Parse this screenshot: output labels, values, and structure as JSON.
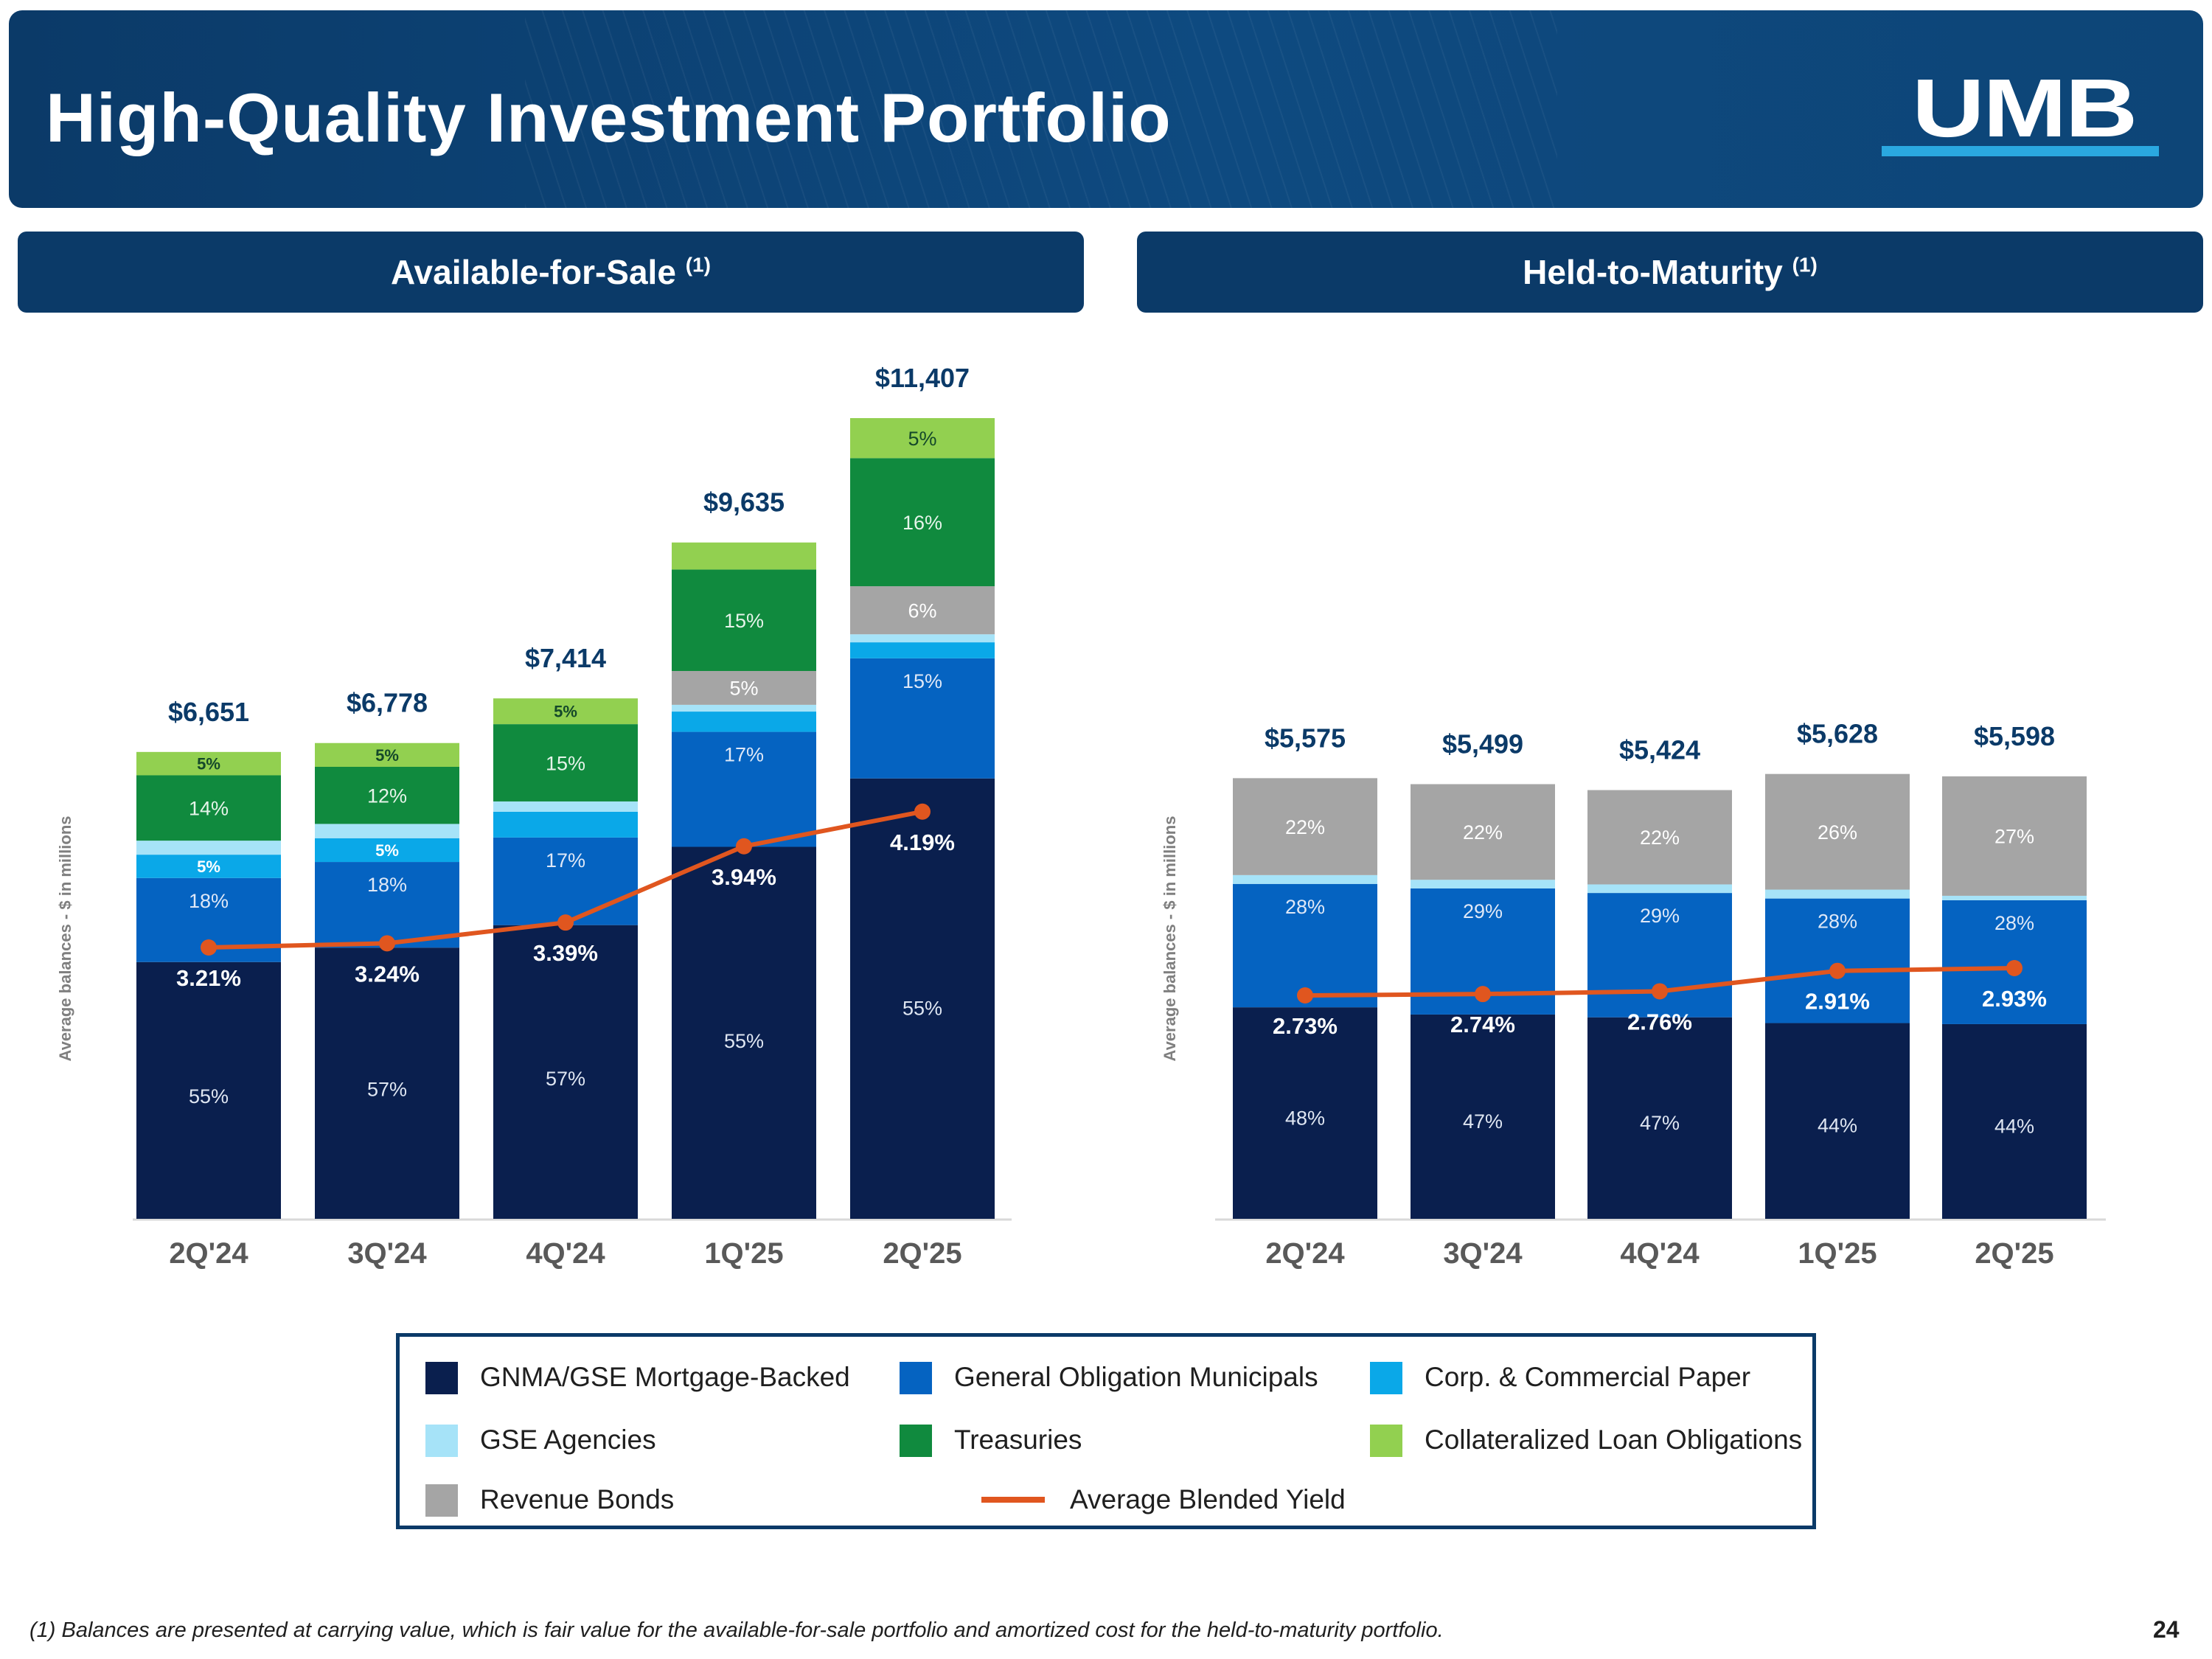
{
  "title": "High-Quality Investment Portfolio",
  "logo": "UMB",
  "colors": {
    "GNMA/GSE Mortgage-Backed": "#0a1f4e",
    "General Obligation Municipals": "#0563c1",
    "Corp. & Commercial Paper": "#0aa8e8",
    "GSE Agencies": "#a6e3f8",
    "Treasuries": "#108a3e",
    "Collateralized Loan Obligations": "#92d050",
    "Revenue Bonds": "#a5a5a5",
    "Average Blended Yield": "#e0561f"
  },
  "legend": {
    "items": [
      {
        "label": "GNMA/GSE Mortgage-Backed",
        "color": "#0a1f4e"
      },
      {
        "label": "General Obligation Municipals",
        "color": "#0563c1"
      },
      {
        "label": "Corp. & Commercial Paper",
        "color": "#0aa8e8"
      },
      {
        "label": "GSE Agencies",
        "color": "#a6e3f8"
      },
      {
        "label": "Treasuries",
        "color": "#108a3e"
      },
      {
        "label": "Collateralized Loan Obligations",
        "color": "#92d050"
      },
      {
        "label": "Revenue Bonds",
        "color": "#a5a5a5"
      },
      {
        "label": "Average Blended Yield",
        "color": "#e0561f"
      }
    ]
  },
  "chart_data": [
    {
      "type": "bar",
      "title": "Available-for-Sale",
      "title_note": "(1)",
      "ylabel": "Average balances  - $ in millions",
      "categories": [
        "2Q'24",
        "3Q'24",
        "4Q'24",
        "1Q'25",
        "2Q'25"
      ],
      "totals": [
        6651,
        6778,
        7414,
        9635,
        11407
      ],
      "total_labels": [
        "$6,651",
        "$6,778",
        "$7,414",
        "$9,635",
        "$11,407"
      ],
      "series": [
        {
          "name": "GNMA/GSE Mortgage-Backed",
          "values": [
            55,
            57,
            57,
            55,
            55
          ],
          "labels": [
            "55%",
            "57%",
            "57%",
            "55%",
            "55%"
          ]
        },
        {
          "name": "General Obligation Municipals",
          "values": [
            18,
            18,
            17,
            17,
            15
          ],
          "labels": [
            "18%",
            "18%",
            "17%",
            "17%",
            "15%"
          ]
        },
        {
          "name": "Corp. & Commercial Paper",
          "values": [
            5,
            5,
            5,
            3,
            2
          ],
          "labels": [
            "5%",
            "5%",
            "",
            "",
            ""
          ]
        },
        {
          "name": "GSE Agencies",
          "values": [
            3,
            3,
            2,
            1,
            1
          ],
          "labels": [
            "",
            "",
            "",
            "",
            ""
          ]
        },
        {
          "name": "Revenue Bonds",
          "values": [
            0,
            0,
            0,
            5,
            6
          ],
          "labels": [
            "",
            "",
            "",
            "5%",
            "6%"
          ]
        },
        {
          "name": "Treasuries",
          "values": [
            14,
            12,
            15,
            15,
            16
          ],
          "labels": [
            "14%",
            "12%",
            "15%",
            "15%",
            "16%"
          ]
        },
        {
          "name": "Collateralized Loan Obligations",
          "values": [
            5,
            5,
            5,
            4,
            5
          ],
          "labels": [
            "5%",
            "5%",
            "5%",
            "",
            "5%"
          ]
        }
      ],
      "yield": {
        "name": "Average Blended Yield",
        "values": [
          3.21,
          3.24,
          3.39,
          3.94,
          4.19
        ],
        "labels": [
          "3.21%",
          "3.24%",
          "3.39%",
          "3.94%",
          "4.19%"
        ]
      }
    },
    {
      "type": "bar",
      "title": "Held-to-Maturity",
      "title_note": "(1)",
      "ylabel": "Average balances  - $ in millions",
      "categories": [
        "2Q'24",
        "3Q'24",
        "4Q'24",
        "1Q'25",
        "2Q'25"
      ],
      "totals": [
        5575,
        5499,
        5424,
        5628,
        5598
      ],
      "total_labels": [
        "$5,575",
        "$5,499",
        "$5,424",
        "$5,628",
        "$5,598"
      ],
      "series": [
        {
          "name": "GNMA/GSE Mortgage-Backed",
          "values": [
            48,
            47,
            47,
            44,
            44
          ],
          "labels": [
            "48%",
            "47%",
            "47%",
            "44%",
            "44%"
          ]
        },
        {
          "name": "General Obligation Municipals",
          "values": [
            28,
            29,
            29,
            28,
            28
          ],
          "labels": [
            "28%",
            "29%",
            "29%",
            "28%",
            "28%"
          ]
        },
        {
          "name": "GSE Agencies",
          "values": [
            2,
            2,
            2,
            2,
            1
          ],
          "labels": [
            "",
            "",
            "",
            "",
            ""
          ]
        },
        {
          "name": "Revenue Bonds",
          "values": [
            22,
            22,
            22,
            26,
            27
          ],
          "labels": [
            "22%",
            "22%",
            "22%",
            "26%",
            "27%"
          ]
        }
      ],
      "yield": {
        "name": "Average Blended Yield",
        "values": [
          2.73,
          2.74,
          2.76,
          2.91,
          2.93
        ],
        "labels": [
          "2.73%",
          "2.74%",
          "2.76%",
          "2.91%",
          "2.93%"
        ]
      }
    }
  ],
  "footnote": "(1) Balances are presented at carrying value, which is fair value for the available-for-sale portfolio and amortized cost for the held-to-maturity portfolio.",
  "page_number": "24"
}
